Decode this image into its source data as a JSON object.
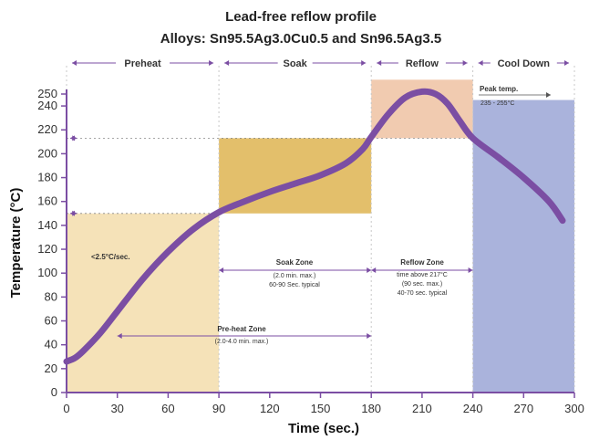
{
  "chart_data": {
    "type": "line",
    "title": "Lead-free reflow profile",
    "subtitle": "Alloys: Sn95.5Ag3.0Cu0.5 and Sn96.5Ag3.5",
    "xlabel": "Time (sec.)",
    "ylabel": "Temperature (°C)",
    "xlim": [
      0,
      300
    ],
    "ylim": [
      0,
      250
    ],
    "x_ticks": [
      "0",
      "30",
      "60",
      "90",
      "120",
      "150",
      "180",
      "210",
      "240",
      "270",
      "300"
    ],
    "y_ticks": [
      "0",
      "20",
      "40",
      "60",
      "80",
      "100",
      "120",
      "140",
      "160",
      "180",
      "200",
      "220",
      "240",
      "250"
    ],
    "phases": [
      {
        "label": "Preheat",
        "start": 0,
        "end": 90
      },
      {
        "label": "Soak",
        "start": 90,
        "end": 180
      },
      {
        "label": "Reflow",
        "start": 180,
        "end": 240
      },
      {
        "label": "Cool Down",
        "start": 240,
        "end": 300
      }
    ],
    "series": [
      {
        "color": "#7b4ea3",
        "x": [
          0,
          5,
          10,
          20,
          30,
          45,
          60,
          75,
          90,
          105,
          120,
          135,
          150,
          165,
          175,
          180,
          190,
          200,
          210,
          218,
          225,
          232,
          240,
          255,
          270,
          285,
          293
        ],
        "y": [
          26,
          29,
          35,
          50,
          68,
          95,
          118,
          137,
          151,
          160,
          168,
          175,
          182,
          192,
          204,
          214,
          233,
          247,
          252,
          250,
          242,
          228,
          213,
          197,
          180,
          160,
          144
        ]
      }
    ],
    "regions": [
      {
        "name": "preheat-region",
        "x0": 0,
        "x1": 90,
        "y0": 0,
        "y1": 150,
        "color": "#f5e2b8"
      },
      {
        "name": "soak-region",
        "x0": 90,
        "x1": 180,
        "y0": 150,
        "y1": 213,
        "color": "#e3bf6b"
      },
      {
        "name": "reflow-region",
        "x0": 180,
        "x1": 240,
        "y0": 213,
        "y1": 262,
        "color": "#f1cbb0"
      },
      {
        "name": "cooldown-region",
        "x0": 240,
        "x1": 300,
        "y0": 0,
        "y1": 245,
        "color": "#aab3dc"
      }
    ],
    "annotations": {
      "ramp_rate": "<2.5°C/sec.",
      "preheat_zone": "Pre-heat Zone",
      "preheat_zone_note": "(2.0-4.0 min. max.)",
      "soak_zone": "Soak Zone",
      "soak_zone_note_1": "(2.0 min. max.)",
      "soak_zone_note_2": "60-90 Sec. typical",
      "reflow_zone": "Reflow Zone",
      "reflow_zone_note_1": "time above 217°C",
      "reflow_zone_note_2": "(90 sec. max.)",
      "reflow_zone_note_3": "40-70 sec. typical",
      "peak_label": "Peak temp.",
      "peak_range": "235 - 255°C"
    },
    "grid": false,
    "legend": "none"
  }
}
